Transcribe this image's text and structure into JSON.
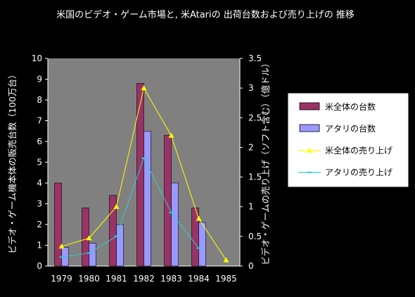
{
  "chart_data": {
    "type": "bar",
    "title": "米国のビデオ・ゲーム市場と, 米Atariの 出荷台数および売り上げの 推移",
    "categories": [
      "1979",
      "1980",
      "1981",
      "1982",
      "1983",
      "1984",
      "1985"
    ],
    "y_left": {
      "label": "ビデオ・ゲーム機本体の販売台数（100万台）",
      "range": [
        0,
        10
      ],
      "ticks": [
        "0",
        "1",
        "2",
        "3",
        "4",
        "5",
        "6",
        "7",
        "8",
        "9",
        "10"
      ]
    },
    "y_right": {
      "label": "ビデオ・ゲームの売り上げ（ソフト含む）（億ドル）",
      "range": [
        0,
        3.5
      ],
      "ticks": [
        "0",
        "0.5",
        "1",
        "1.5",
        "2",
        "2.5",
        "3",
        "3.5"
      ]
    },
    "grid": false,
    "legend_position": "right",
    "series": [
      {
        "name": "米全体の台数",
        "kind": "bar",
        "axis": "left",
        "color": "#993366",
        "values": [
          4.0,
          2.8,
          3.4,
          8.8,
          6.3,
          2.8,
          null
        ]
      },
      {
        "name": "アタリの台数",
        "kind": "bar",
        "axis": "left",
        "color": "#9999ff",
        "values": [
          0.9,
          1.1,
          2.0,
          6.5,
          4.0,
          2.1,
          null
        ]
      },
      {
        "name": "米全体の売り上げ",
        "kind": "line",
        "axis": "right",
        "color": "#ffff00",
        "marker": "triangle",
        "values": [
          0.33,
          0.47,
          1.0,
          3.0,
          2.2,
          0.8,
          0.1
        ]
      },
      {
        "name": "アタリの売り上げ",
        "kind": "line",
        "axis": "right",
        "color": "#33cccc",
        "marker": "dash",
        "values": [
          0.15,
          0.22,
          0.5,
          1.82,
          0.9,
          0.3,
          null
        ]
      }
    ]
  }
}
